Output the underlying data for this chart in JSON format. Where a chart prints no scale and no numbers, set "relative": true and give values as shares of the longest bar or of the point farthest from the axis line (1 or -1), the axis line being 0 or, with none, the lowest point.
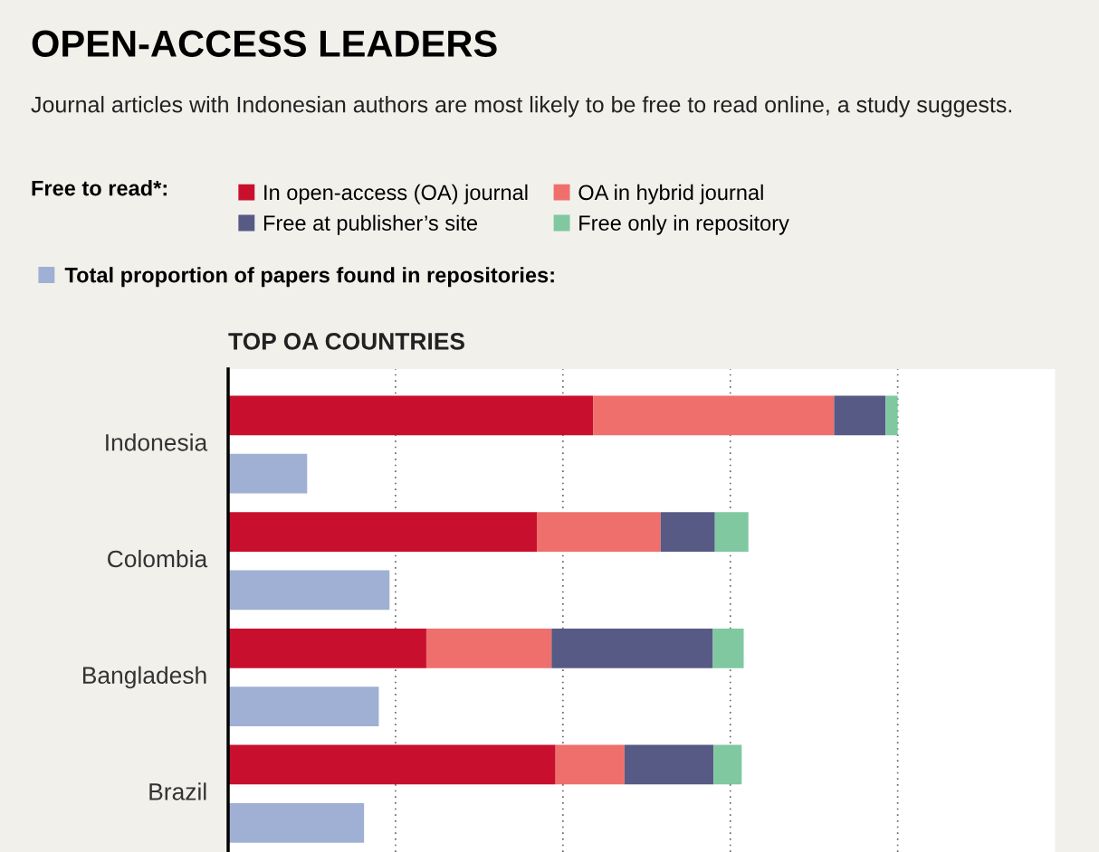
{
  "chart_data": {
    "type": "bar",
    "orientation": "horizontal",
    "stacked": true,
    "relative": true,
    "title": "OPEN-ACCESS LEADERS",
    "subtitle": "Journal articles with Indonesian authors are most likely to be free to read online, a study suggests.",
    "annotations": [
      "TOP OA COUNTRIES"
    ],
    "legend_title": "Free to read*:",
    "legend": "top",
    "grid": "x",
    "categories": [
      "Indonesia",
      null,
      "Colombia",
      null,
      "Bangladesh",
      null,
      "Brazil",
      null
    ],
    "series": [
      {
        "name": "In open-access (OA) journal",
        "color": "#c8102e",
        "values": [
          0.545,
          null,
          0.461,
          null,
          0.296,
          null,
          0.489,
          null
        ]
      },
      {
        "name": "OA in hybrid journal",
        "color": "#ef6f6c",
        "values": [
          0.36,
          null,
          0.185,
          null,
          0.187,
          null,
          0.103,
          null
        ]
      },
      {
        "name": "Free at publisher’s site",
        "color": "#575a84",
        "values": [
          0.077,
          null,
          0.081,
          null,
          0.241,
          null,
          0.133,
          null
        ]
      },
      {
        "name": "Free only in repository",
        "color": "#7fc8a0",
        "values": [
          0.018,
          null,
          0.05,
          null,
          0.046,
          null,
          0.042,
          null
        ]
      },
      {
        "name": "Total proportion of papers found in repositories:",
        "color": "#9fb0d4",
        "values": [
          null,
          0.118,
          null,
          0.241,
          null,
          0.225,
          null,
          0.203
        ]
      }
    ]
  }
}
